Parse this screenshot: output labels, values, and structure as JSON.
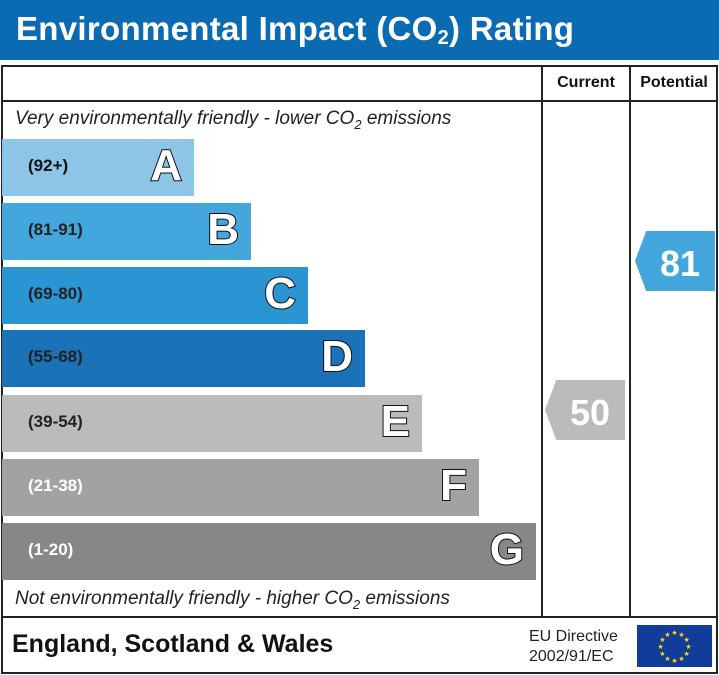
{
  "header": {
    "title_pre": "Environmental Impact (CO",
    "title_sub": "2",
    "title_post": ") Rating"
  },
  "columns": {
    "current": "Current",
    "potential": "Potential"
  },
  "top_note": {
    "pre": "Very environmentally friendly - lower CO",
    "sub": "2",
    "post": " emissions"
  },
  "bottom_note": {
    "pre": "Not environmentally friendly - higher CO",
    "sub": "2",
    "post": " emissions"
  },
  "footer": {
    "region": "England, Scotland & Wales",
    "directive_line1": "EU Directive",
    "directive_line2": "2002/91/EC",
    "flag_icon": "eu-flag-icon"
  },
  "chart_data": {
    "type": "bar",
    "categories": [
      "A",
      "B",
      "C",
      "D",
      "E",
      "F",
      "G"
    ],
    "ranges": [
      "(92+)",
      "(81-91)",
      "(69-80)",
      "(55-68)",
      "(39-54)",
      "(21-38)",
      "(1-20)"
    ],
    "colors": [
      "#8cc5e8",
      "#43a6dc",
      "#2b95d3",
      "#1b72b8",
      "#bbbbbb",
      "#a2a2a2",
      "#878787"
    ],
    "range_text_colors": [
      "#111111",
      "#222222",
      "#222222",
      "#222222",
      "#222222",
      "#ffffff",
      "#ffffff"
    ],
    "current": {
      "value": "50",
      "band": "E",
      "color": "#bbbbbb"
    },
    "potential": {
      "value": "81",
      "band": "B",
      "color": "#43a6dc"
    }
  }
}
